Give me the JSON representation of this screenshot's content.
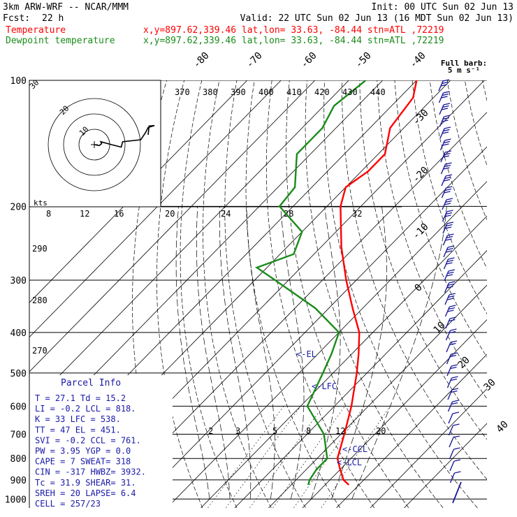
{
  "header": {
    "title": "3km ARW-WRF -- NCAR/MMM",
    "init": "Init: 00 UTC Sun 02 Jun 13",
    "fcst_label": "Fcst:",
    "fcst_value": "22 h",
    "valid": "Valid: 22 UTC Sun 02 Jun 13 (16 MDT Sun 02 Jun 13)",
    "temperature_label": "Temperature",
    "dewpoint_label": "Dewpoint temperature",
    "location_temp": "x,y=897.62,339.46   lat,lon= 33.63, -84.44   stn=ATL ,72219",
    "location_dew": "x,y=897.62,339.46   lat,lon= 33.63, -84.44   stn=ATL ,72219",
    "barb_legend": "Full barb:",
    "barb_legend_value": "5 m s⁻¹"
  },
  "colors": {
    "temperature": "#ff0000",
    "dewpoint": "#1a8c1a",
    "parcel_text": "#1a1aa8",
    "barbs": "#1a1a9a",
    "grid": "#000000"
  },
  "chart_data": {
    "type": "line",
    "chart_kind": "skew-T log-P sounding",
    "pressure_levels": [
      100,
      200,
      300,
      400,
      500,
      600,
      700,
      800,
      900,
      1000
    ],
    "isotherm_labels": [
      "-80",
      "-70",
      "-60",
      "-50",
      "-40",
      "-30",
      "-20",
      "-10",
      "0",
      "10",
      "20",
      "30",
      "40"
    ],
    "theta_labels_top": [
      "370",
      "380",
      "390",
      "400",
      "410",
      "420",
      "430",
      "440"
    ],
    "theta_labels_left": [
      "290",
      "280",
      "270"
    ],
    "hodograph_speed_labels": [
      "8",
      "12",
      "16",
      "20",
      "24",
      "28",
      "32"
    ],
    "hodograph_units": "kts",
    "hodograph_ring_labels": [
      "10",
      "20",
      "30"
    ],
    "mixing_ratio_labels": [
      "2",
      "3",
      "5",
      "8",
      "12",
      "20"
    ],
    "series": [
      {
        "name": "Temperature",
        "points": [
          {
            "p": 100,
            "t": -70
          },
          {
            "p": 110,
            "t": -66
          },
          {
            "p": 130,
            "t": -64
          },
          {
            "p": 150,
            "t": -58
          },
          {
            "p": 165,
            "t": -58
          },
          {
            "p": 180,
            "t": -60
          },
          {
            "p": 200,
            "t": -56
          },
          {
            "p": 250,
            "t": -44
          },
          {
            "p": 300,
            "t": -33
          },
          {
            "p": 350,
            "t": -23
          },
          {
            "p": 400,
            "t": -14
          },
          {
            "p": 450,
            "t": -8
          },
          {
            "p": 500,
            "t": -3
          },
          {
            "p": 600,
            "t": 5
          },
          {
            "p": 700,
            "t": 11
          },
          {
            "p": 800,
            "t": 16
          },
          {
            "p": 850,
            "t": 20
          },
          {
            "p": 900,
            "t": 24
          },
          {
            "p": 925,
            "t": 27
          }
        ]
      },
      {
        "name": "Dewpoint temperature",
        "points": [
          {
            "p": 100,
            "t": -85
          },
          {
            "p": 115,
            "t": -87
          },
          {
            "p": 130,
            "t": -84
          },
          {
            "p": 150,
            "t": -84
          },
          {
            "p": 180,
            "t": -75
          },
          {
            "p": 200,
            "t": -74
          },
          {
            "p": 230,
            "t": -60
          },
          {
            "p": 260,
            "t": -56
          },
          {
            "p": 280,
            "t": -63
          },
          {
            "p": 300,
            "t": -54
          },
          {
            "p": 350,
            "t": -34
          },
          {
            "p": 400,
            "t": -20
          },
          {
            "p": 450,
            "t": -16
          },
          {
            "p": 500,
            "t": -13
          },
          {
            "p": 600,
            "t": -8
          },
          {
            "p": 700,
            "t": 5
          },
          {
            "p": 800,
            "t": 13
          },
          {
            "p": 850,
            "t": 13
          },
          {
            "p": 900,
            "t": 14
          },
          {
            "p": 925,
            "t": 15
          }
        ]
      }
    ],
    "annotations": [
      {
        "label": "<-EL",
        "p": 451
      },
      {
        "label": "<-LFC",
        "p": 538
      },
      {
        "label": "<-CCL",
        "p": 761
      },
      {
        "label": "<-LCL",
        "p": 818
      }
    ],
    "hodograph_trace": [
      {
        "u": 0,
        "v": 0
      },
      {
        "u": 1,
        "v": -0.2
      },
      {
        "u": 1.5,
        "v": 0.2
      },
      {
        "u": 1.3,
        "v": 0.6
      },
      {
        "u": 3.5,
        "v": 0.0
      },
      {
        "u": 5.5,
        "v": -0.5
      },
      {
        "u": 5.8,
        "v": 0.6
      },
      {
        "u": 9.5,
        "v": 1.0
      },
      {
        "u": 10.5,
        "v": 2.5
      },
      {
        "u": 11.0,
        "v": 3.5
      },
      {
        "u": 12.3,
        "v": 3.9
      },
      {
        "u": 11.2,
        "v": 3.8
      },
      {
        "u": 11.0,
        "v": 2.0
      }
    ]
  },
  "parcel_info": {
    "title": "Parcel Info",
    "rows": [
      "T    =    27.1  Td =  15.2",
      "LI   =    -0.2  LCL =  818.",
      "K    =      33  LFC =  538.",
      "TT   =      47  EL  =  451.",
      "SVI  =    -0.2  CCL =  761.",
      "PW   =    3.95  YGP =   0.0",
      "CAPE =       7  SWEAT=   318",
      "CIN  =    -317  HWBZ= 3932.",
      "Tc   =    31.9  SHEAR=   31.",
      "SREH =      20  LAPSE=   6.4",
      "CELL = 257/23"
    ]
  }
}
